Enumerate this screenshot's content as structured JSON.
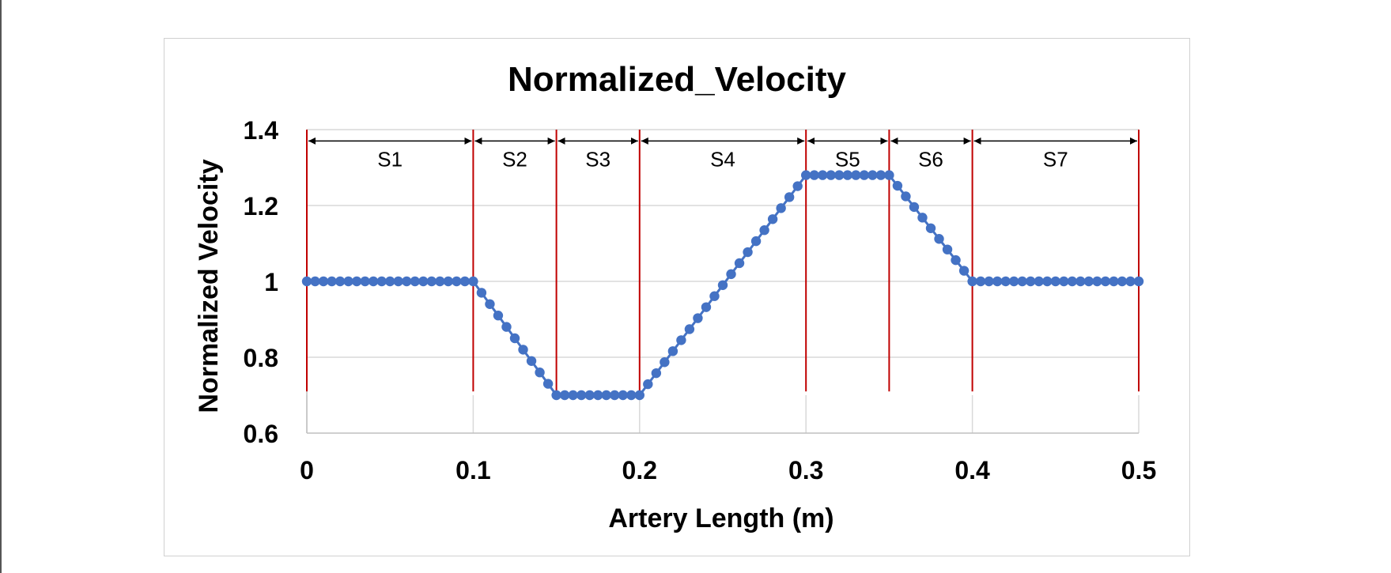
{
  "chart_data": {
    "type": "scatter",
    "title": "Normalized_Velocity",
    "xlabel": "Artery Length (m)",
    "ylabel": "Normalized Velocity",
    "xlim": [
      0,
      0.5
    ],
    "ylim": [
      0.6,
      1.4
    ],
    "x_ticks": [
      "0",
      "0.1",
      "0.2",
      "0.3",
      "0.4",
      "0.5"
    ],
    "y_ticks": [
      "0.6",
      "0.8",
      "1",
      "1.2",
      "1.4"
    ],
    "grid": true,
    "legend": "none",
    "marker_color": "#4472C4",
    "line_color": "#4472C4",
    "boundary_color": "#C00000",
    "segments": [
      {
        "label": "S1",
        "start": 0.0,
        "end": 0.1
      },
      {
        "label": "S2",
        "start": 0.1,
        "end": 0.15
      },
      {
        "label": "S3",
        "start": 0.15,
        "end": 0.2
      },
      {
        "label": "S4",
        "start": 0.2,
        "end": 0.3
      },
      {
        "label": "S5",
        "start": 0.3,
        "end": 0.35
      },
      {
        "label": "S6",
        "start": 0.35,
        "end": 0.4
      },
      {
        "label": "S7",
        "start": 0.4,
        "end": 0.5
      }
    ],
    "series": [
      {
        "x": [
          0.0,
          0.005,
          0.01,
          0.015,
          0.02,
          0.025,
          0.03,
          0.035,
          0.04,
          0.045,
          0.05,
          0.055,
          0.06,
          0.065,
          0.07,
          0.075,
          0.08,
          0.085,
          0.09,
          0.095,
          0.1,
          0.105,
          0.11,
          0.115,
          0.12,
          0.125,
          0.13,
          0.135,
          0.14,
          0.145,
          0.15,
          0.155,
          0.16,
          0.165,
          0.17,
          0.175,
          0.18,
          0.185,
          0.19,
          0.195,
          0.2,
          0.205,
          0.21,
          0.215,
          0.22,
          0.225,
          0.23,
          0.235,
          0.24,
          0.245,
          0.25,
          0.255,
          0.26,
          0.265,
          0.27,
          0.275,
          0.28,
          0.285,
          0.29,
          0.295,
          0.3,
          0.305,
          0.31,
          0.315,
          0.32,
          0.325,
          0.33,
          0.335,
          0.34,
          0.345,
          0.35,
          0.355,
          0.36,
          0.365,
          0.37,
          0.375,
          0.38,
          0.385,
          0.39,
          0.395,
          0.4,
          0.405,
          0.41,
          0.415,
          0.42,
          0.425,
          0.43,
          0.435,
          0.44,
          0.445,
          0.45,
          0.455,
          0.46,
          0.465,
          0.47,
          0.475,
          0.48,
          0.485,
          0.49,
          0.495,
          0.5
        ],
        "y": [
          1,
          1,
          1,
          1,
          1,
          1,
          1,
          1,
          1,
          1,
          1,
          1,
          1,
          1,
          1,
          1,
          1,
          1,
          1,
          1,
          1,
          0.97,
          0.94,
          0.91,
          0.88,
          0.85,
          0.82,
          0.79,
          0.76,
          0.73,
          0.7,
          0.7,
          0.7,
          0.7,
          0.7,
          0.7,
          0.7,
          0.7,
          0.7,
          0.7,
          0.7,
          0.729,
          0.758,
          0.787,
          0.816,
          0.845,
          0.874,
          0.903,
          0.932,
          0.961,
          0.99,
          1.019,
          1.048,
          1.077,
          1.106,
          1.135,
          1.164,
          1.193,
          1.222,
          1.251,
          1.28,
          1.28,
          1.28,
          1.28,
          1.28,
          1.28,
          1.28,
          1.28,
          1.28,
          1.28,
          1.28,
          1.252,
          1.224,
          1.196,
          1.168,
          1.14,
          1.112,
          1.084,
          1.056,
          1.028,
          1.0,
          1,
          1,
          1,
          1,
          1,
          1,
          1,
          1,
          1,
          1,
          1,
          1,
          1,
          1,
          1,
          1,
          1,
          1,
          1,
          1
        ]
      }
    ]
  }
}
